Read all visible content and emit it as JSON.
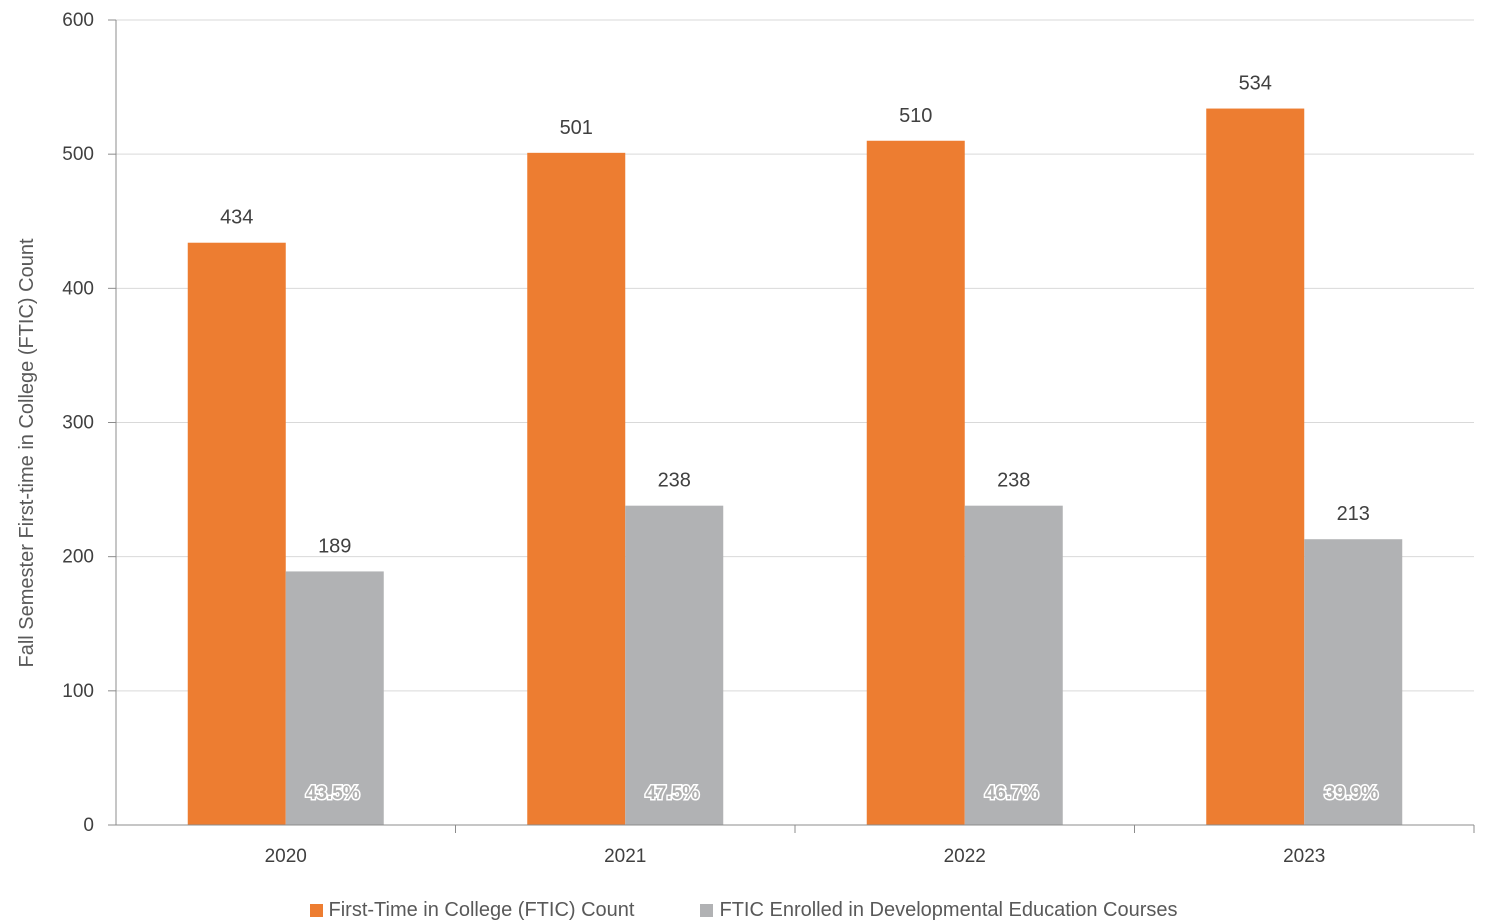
{
  "chart_data": {
    "type": "bar",
    "title": "",
    "xlabel": "",
    "ylabel": "Fall Semester First-time in College (FTIC) Count",
    "ylim": [
      0,
      600
    ],
    "yticks": [
      0,
      100,
      200,
      300,
      400,
      500,
      600
    ],
    "grid": true,
    "legend_position": "bottom",
    "categories": [
      "2020",
      "2021",
      "2022",
      "2023"
    ],
    "series": [
      {
        "name": "First-Time in College (FTIC) Count",
        "color": "#ED7D31",
        "values": [
          434,
          501,
          510,
          534
        ]
      },
      {
        "name": "FTIC Enrolled in Developmental Education Courses",
        "color": "#B1B2B4",
        "values": [
          189,
          238,
          238,
          213
        ]
      }
    ],
    "annotations": [
      "43.5%",
      "47.5%",
      "46.7%",
      "39.9%"
    ]
  }
}
